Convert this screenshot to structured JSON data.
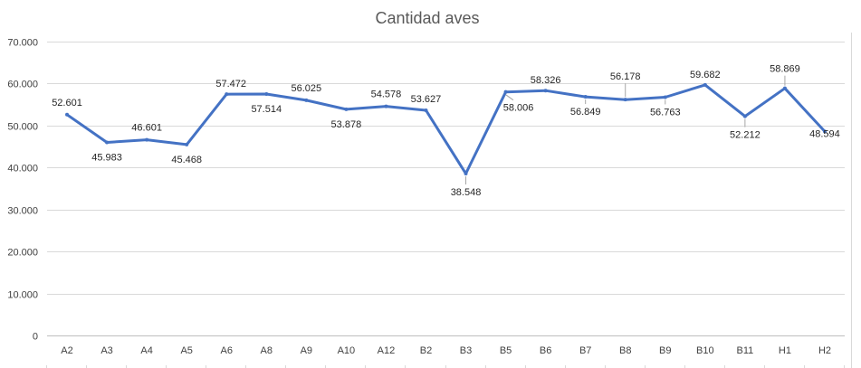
{
  "chart_data": {
    "type": "line",
    "title": "Cantidad aves",
    "xlabel": "",
    "ylabel": "",
    "categories": [
      "A2",
      "A3",
      "A4",
      "A5",
      "A6",
      "A8",
      "A9",
      "A10",
      "A12",
      "B2",
      "B3",
      "B5",
      "B6",
      "B7",
      "B8",
      "B9",
      "B10",
      "B11",
      "H1",
      "H2"
    ],
    "series": [
      {
        "values": [
          52601,
          45983,
          46601,
          45468,
          57472,
          57514,
          56025,
          53878,
          54578,
          53627,
          38548,
          58006,
          58326,
          56849,
          56178,
          56763,
          59682,
          52212,
          58869,
          48594
        ],
        "data_labels": [
          "52.601",
          "45.983",
          "46.601",
          "45.468",
          "57.472",
          "57.514",
          "56.025",
          "53.878",
          "54.578",
          "53.627",
          "38.548",
          "58.006",
          "58.326",
          "56.849",
          "56.178",
          "56.763",
          "59.682",
          "52.212",
          "58.869",
          "48.594"
        ],
        "color": "#4472c4"
      }
    ],
    "y_ticks": [
      0,
      10000,
      20000,
      30000,
      40000,
      50000,
      60000,
      70000
    ],
    "y_tick_labels": [
      "0",
      "10.000",
      "20.000",
      "30.000",
      "40.000",
      "50.000",
      "60.000",
      "70.000"
    ],
    "ylim": [
      0,
      70000
    ],
    "grid": true,
    "legend": "none",
    "colors": {
      "series": "#4472c4",
      "grid": "#d9d9d9",
      "text": "#404040",
      "title": "#595959"
    }
  }
}
